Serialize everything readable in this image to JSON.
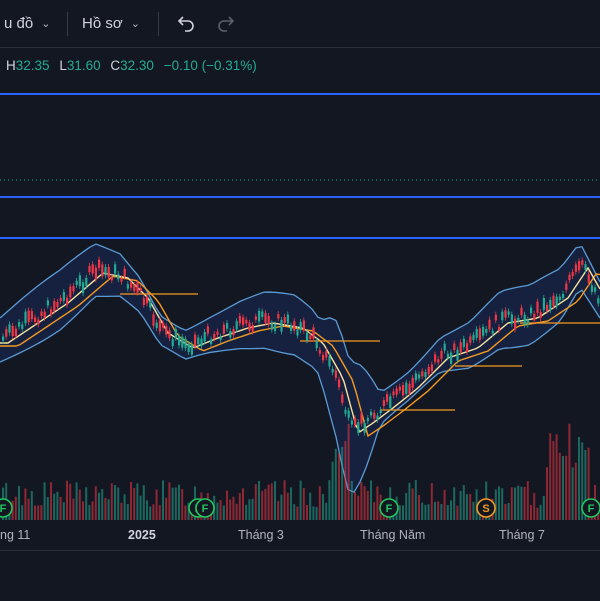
{
  "toolbar": {
    "chart_menu": "u đồ",
    "profile_menu": "Hồ sơ",
    "undo_icon": "undo-icon",
    "redo_icon": "redo-icon"
  },
  "legend": {
    "high_label": "H",
    "high": "32.35",
    "low_label": "L",
    "low": "31.60",
    "close_label": "C",
    "close": "32.30",
    "change": "−0.10 (−0.31%)"
  },
  "x_axis": {
    "labels": [
      "ng 11",
      "2025",
      "Tháng 3",
      "Tháng Năm",
      "Tháng 7"
    ]
  },
  "events": [
    "F",
    "F",
    "F",
    "F",
    "S",
    "F"
  ],
  "colors": {
    "up": "#22ab94",
    "down": "#f23645",
    "band": "#2962ff",
    "ma_fast": "#f7e3a1",
    "ma_slow": "#f59a23",
    "bollinger": "#5b9bd5",
    "event_f": "#22c55e",
    "event_s": "#f59a23"
  }
}
